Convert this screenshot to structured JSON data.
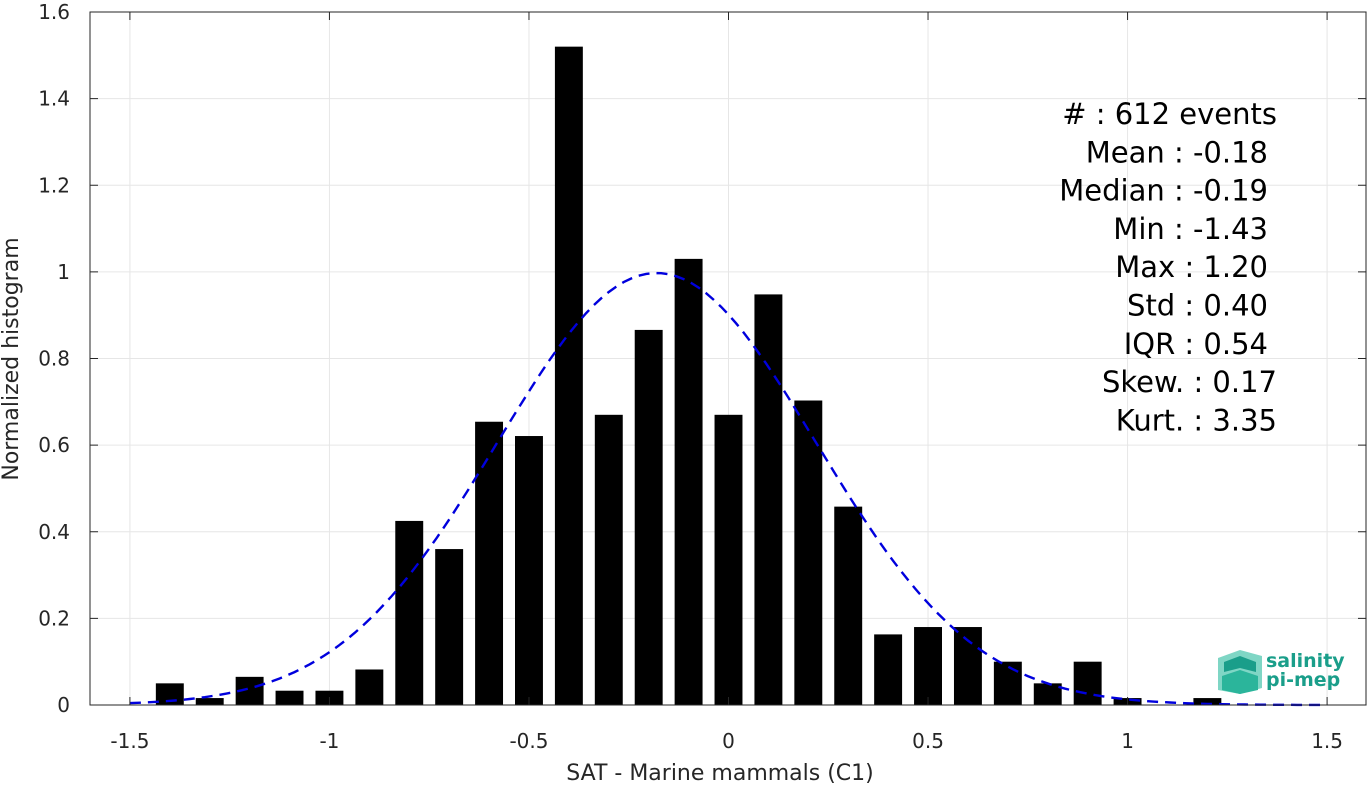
{
  "chart_data": {
    "type": "bar",
    "xlabel": "SAT - Marine mammals (C1)",
    "ylabel": "Normalized histogram",
    "xlim": [
      -1.6,
      1.6
    ],
    "ylim": [
      0,
      1.6
    ],
    "xticks": [
      -1.5,
      -1,
      -0.5,
      0,
      0.5,
      1,
      1.5
    ],
    "xtick_labels": [
      "-1.5",
      "-1",
      "-0.5",
      "0",
      "0.5",
      "1",
      "1.5"
    ],
    "yticks": [
      0,
      0.2,
      0.4,
      0.6,
      0.8,
      1,
      1.2,
      1.4,
      1.6
    ],
    "ytick_labels": [
      "0",
      "0.2",
      "0.4",
      "0.6",
      "0.8",
      "1",
      "1.2",
      "1.4",
      "1.6"
    ],
    "grid": true,
    "bar_color": "#000000",
    "bin_width": 0.1,
    "bins": [
      {
        "x": -1.4,
        "value": 0.05
      },
      {
        "x": -1.3,
        "value": 0.016
      },
      {
        "x": -1.2,
        "value": 0.065
      },
      {
        "x": -1.1,
        "value": 0.033
      },
      {
        "x": -1.0,
        "value": 0.033
      },
      {
        "x": -0.9,
        "value": 0.082
      },
      {
        "x": -0.8,
        "value": 0.425
      },
      {
        "x": -0.7,
        "value": 0.36
      },
      {
        "x": -0.6,
        "value": 0.654
      },
      {
        "x": -0.5,
        "value": 0.621
      },
      {
        "x": -0.4,
        "value": 1.52
      },
      {
        "x": -0.3,
        "value": 0.67
      },
      {
        "x": -0.2,
        "value": 0.866
      },
      {
        "x": -0.1,
        "value": 1.03
      },
      {
        "x": 0.0,
        "value": 0.67
      },
      {
        "x": 0.1,
        "value": 0.948
      },
      {
        "x": 0.2,
        "value": 0.703
      },
      {
        "x": 0.3,
        "value": 0.458
      },
      {
        "x": 0.4,
        "value": 0.163
      },
      {
        "x": 0.5,
        "value": 0.18
      },
      {
        "x": 0.6,
        "value": 0.18
      },
      {
        "x": 0.7,
        "value": 0.1
      },
      {
        "x": 0.8,
        "value": 0.05
      },
      {
        "x": 0.9,
        "value": 0.1
      },
      {
        "x": 1.0,
        "value": 0.016
      },
      {
        "x": 1.2,
        "value": 0.016
      }
    ],
    "fit_curve": {
      "type": "gaussian",
      "mean": -0.18,
      "std": 0.4,
      "x_range": [
        -1.5,
        1.5
      ],
      "color": "#0000dd",
      "style": "dashed"
    },
    "stats_lines": [
      "#  : 612 events",
      "Mean : -0.18",
      "Median : -0.19",
      "Min : -1.43",
      "Max : 1.20",
      "Std : 0.40",
      "IQR : 0.54",
      "Skew. : 0.17",
      "Kurt. : 3.35"
    ]
  },
  "logo": {
    "line1": "salinity",
    "line2": "pi-mep",
    "color": "#1a9e8a"
  }
}
